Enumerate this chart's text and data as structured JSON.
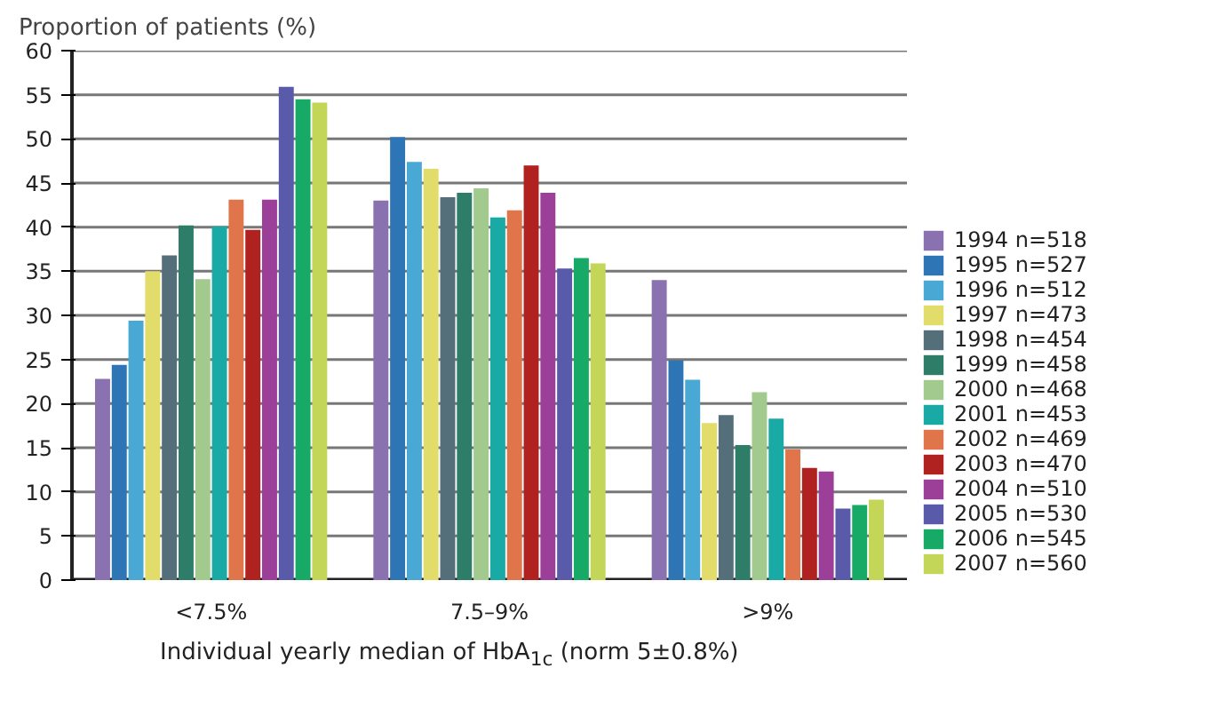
{
  "chart_data": {
    "type": "bar",
    "ylabel": "Proportion of patients (%)",
    "xlabel": "Individual yearly median of HbA$_{1c}$ (norm 5±0.8%)",
    "categories": [
      "<7.5%",
      "7.5–9%",
      ">9%"
    ],
    "series": [
      {
        "name": "1994 n=518",
        "color": "#8a72b0",
        "values": [
          22.8,
          43.0,
          34.0
        ]
      },
      {
        "name": "1995 n=527",
        "color": "#2e75b6",
        "values": [
          24.4,
          50.2,
          24.9
        ]
      },
      {
        "name": "1996 n=512",
        "color": "#4aa8d4",
        "values": [
          29.4,
          47.4,
          22.7
        ]
      },
      {
        "name": "1997 n=473",
        "color": "#e2dc6a",
        "values": [
          35.0,
          46.6,
          17.8
        ]
      },
      {
        "name": "1998 n=454",
        "color": "#546e7a",
        "values": [
          36.8,
          43.4,
          18.7
        ]
      },
      {
        "name": "1999 n=458",
        "color": "#2e7d68",
        "values": [
          40.2,
          43.9,
          15.3
        ]
      },
      {
        "name": "2000 n=468",
        "color": "#a2c98e",
        "values": [
          34.1,
          44.4,
          21.3
        ]
      },
      {
        "name": "2001 n=453",
        "color": "#19aaa5",
        "values": [
          40.1,
          41.1,
          18.3
        ]
      },
      {
        "name": "2002 n=469",
        "color": "#e0744a",
        "values": [
          43.1,
          41.9,
          14.8
        ]
      },
      {
        "name": "2003 n=470",
        "color": "#b0221f",
        "values": [
          39.7,
          47.0,
          12.7
        ]
      },
      {
        "name": "2004 n=510",
        "color": "#9b3f98",
        "values": [
          43.1,
          43.9,
          12.3
        ]
      },
      {
        "name": "2005 n=530",
        "color": "#5a5aaa",
        "values": [
          55.9,
          35.3,
          8.1
        ]
      },
      {
        "name": "2006 n=545",
        "color": "#17aa66",
        "values": [
          54.5,
          36.5,
          8.5
        ]
      },
      {
        "name": "2007 n=560",
        "color": "#c4d657",
        "values": [
          54.1,
          35.9,
          9.1
        ]
      }
    ],
    "ylim": [
      0,
      60
    ],
    "yticks": [
      0,
      5,
      10,
      15,
      20,
      25,
      30,
      35,
      40,
      45,
      50,
      55,
      60
    ],
    "grid": "y",
    "legend": "right"
  }
}
